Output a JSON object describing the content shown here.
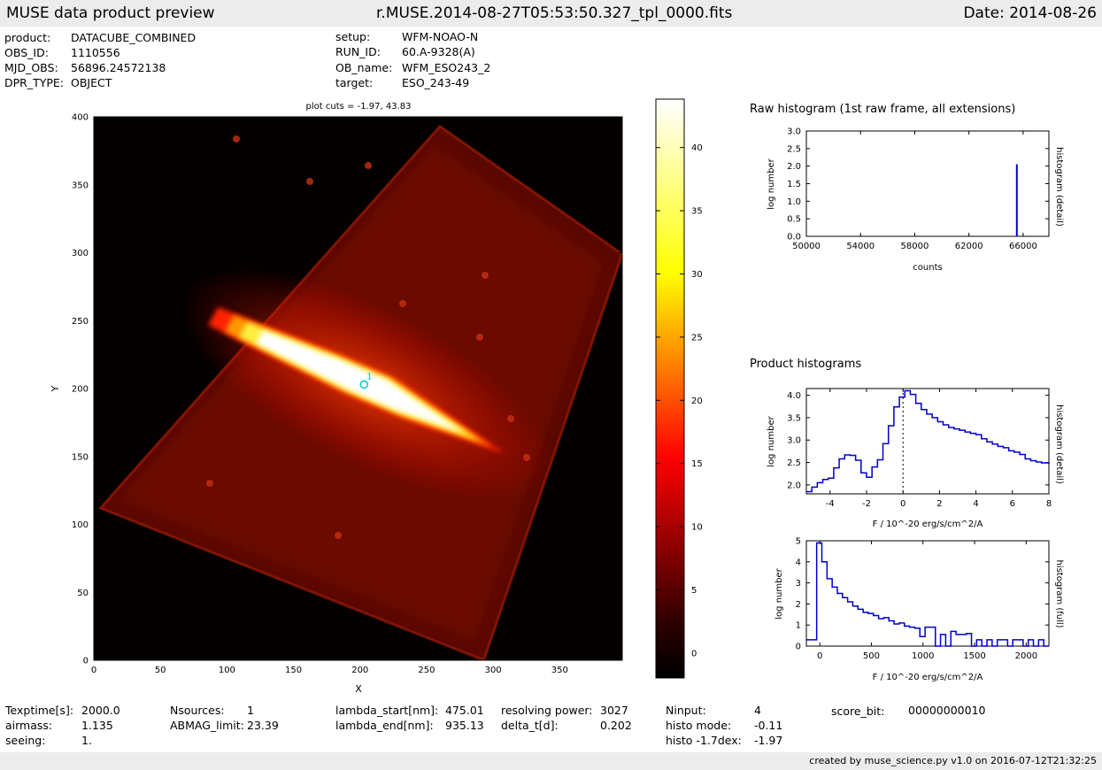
{
  "header": {
    "title": "MUSE data product preview",
    "filename": "r.MUSE.2014-08-27T05:53:50.327_tpl_0000.fits",
    "date": "Date: 2014-08-26"
  },
  "info": {
    "left": [
      {
        "label": "product:",
        "value": "DATACUBE_COMBINED"
      },
      {
        "label": "OBS_ID:",
        "value": "1110556"
      },
      {
        "label": "MJD_OBS:",
        "value": "56896.24572138"
      },
      {
        "label": "DPR_TYPE:",
        "value": "OBJECT"
      }
    ],
    "right": [
      {
        "label": "setup:",
        "value": "WFM-NOAO-N"
      },
      {
        "label": "RUN_ID:",
        "value": "60.A-9328(A)"
      },
      {
        "label": "OB_name:",
        "value": "WFM_ESO243_2"
      },
      {
        "label": "target:",
        "value": "ESO_243-49"
      }
    ]
  },
  "footer": {
    "c1": [
      {
        "label": "Texptime[s]:",
        "value": "2000.0"
      },
      {
        "label": "airmass:",
        "value": "1.135"
      },
      {
        "label": "seeing:",
        "value": "1."
      }
    ],
    "c2": [
      {
        "label": "Nsources:",
        "value": "1"
      },
      {
        "label": "ABMAG_limit:",
        "value": "23.39"
      }
    ],
    "c3": [
      {
        "label": "lambda_start[nm]:",
        "value": "475.01"
      },
      {
        "label": "lambda_end[nm]:",
        "value": "935.13"
      }
    ],
    "c4": [
      {
        "label": "resolving power:",
        "value": "3027"
      },
      {
        "label": "delta_t[d]:",
        "value": "0.202"
      }
    ],
    "c5": [
      {
        "label": "Ninput:",
        "value": "4"
      },
      {
        "label": "histo mode:",
        "value": "-0.11"
      },
      {
        "label": "histo -1.7dex:",
        "value": "-1.97"
      }
    ],
    "c6": [
      {
        "label": "score_bit:",
        "value": "00000000010"
      }
    ],
    "credit": "created by muse_science.py v1.0 on 2016-07-12T21:32:25"
  },
  "colors": {
    "hist": "#0000cc",
    "source": "#00c8c8",
    "bar": "#ececec"
  },
  "chart_data": [
    {
      "type": "heatmap",
      "title": "plot cuts = -1.97, 43.83",
      "xlabel": "X",
      "ylabel": "Y",
      "xlim": [
        0,
        397
      ],
      "ylim": [
        0,
        400
      ],
      "xticks": [
        0,
        50,
        100,
        150,
        200,
        250,
        300,
        350
      ],
      "yticks": [
        0,
        50,
        100,
        150,
        200,
        250,
        300,
        350,
        400
      ],
      "colormap": "hot",
      "field_corners": [
        [
          5,
          112
        ],
        [
          260,
          393
        ],
        [
          397,
          299
        ],
        [
          293,
          0
        ]
      ],
      "galaxy_peak": [
        250,
        207
      ],
      "source": {
        "x": 203,
        "y": 203,
        "label": "1"
      },
      "colorbar": {
        "min": -1.97,
        "max": 43.83,
        "ticks": [
          0,
          5,
          10,
          15,
          20,
          25,
          30,
          35,
          40
        ]
      }
    },
    {
      "type": "bar",
      "title": "Raw histogram (1st raw frame, all extensions)",
      "xlabel": "counts",
      "ylabel": "log number",
      "y2label": "histogram (detail)",
      "xlim": [
        50000,
        67900
      ],
      "ylim": [
        0,
        3.0
      ],
      "xticks": [
        50000,
        54000,
        58000,
        62000,
        66000
      ],
      "yticks": [
        0.0,
        0.5,
        1.0,
        1.5,
        2.0,
        2.5,
        3.0
      ],
      "spike": {
        "x": 65535,
        "y": 2.05
      }
    },
    {
      "type": "line",
      "title": "Product histograms",
      "xlabel": "F / 10^-20 erg/s/cm^2/A",
      "ylabel": "log number",
      "y2label": "histogram (detail)",
      "xlim": [
        -5.3,
        8
      ],
      "ylim": [
        1.8,
        4.15
      ],
      "xticks": [
        -4,
        -2,
        0,
        2,
        4,
        6,
        8
      ],
      "yticks": [
        2.0,
        2.5,
        3.0,
        3.5,
        4.0
      ],
      "vline": 0,
      "x": [
        -5.3,
        -5.0,
        -4.7,
        -4.4,
        -4.1,
        -3.8,
        -3.5,
        -3.2,
        -2.9,
        -2.6,
        -2.3,
        -2.0,
        -1.7,
        -1.4,
        -1.1,
        -0.8,
        -0.5,
        -0.2,
        0.1,
        0.4,
        0.7,
        1.0,
        1.3,
        1.6,
        1.9,
        2.2,
        2.5,
        2.8,
        3.1,
        3.4,
        3.7,
        4.0,
        4.3,
        4.6,
        4.9,
        5.2,
        5.5,
        5.8,
        6.1,
        6.4,
        6.7,
        7.0,
        7.3,
        7.6,
        8.0
      ],
      "y": [
        1.85,
        1.95,
        2.05,
        2.12,
        2.15,
        2.38,
        2.58,
        2.67,
        2.66,
        2.55,
        2.27,
        2.17,
        2.4,
        2.56,
        2.92,
        3.32,
        3.74,
        3.96,
        4.1,
        4.02,
        3.82,
        3.68,
        3.58,
        3.5,
        3.41,
        3.34,
        3.28,
        3.25,
        3.22,
        3.18,
        3.15,
        3.12,
        3.03,
        2.96,
        2.91,
        2.86,
        2.83,
        2.76,
        2.73,
        2.68,
        2.58,
        2.54,
        2.51,
        2.49,
        2.47
      ]
    },
    {
      "type": "line",
      "xlabel": "F / 10^-20 erg/s/cm^2/A",
      "ylabel": "log number",
      "y2label": "histogram (full)",
      "xlim": [
        -130,
        2220
      ],
      "ylim": [
        0,
        5
      ],
      "xticks": [
        0,
        500,
        1000,
        1500,
        2000
      ],
      "yticks": [
        0,
        1,
        2,
        3,
        4,
        5
      ],
      "x": [
        -130,
        -30,
        20,
        70,
        120,
        170,
        220,
        270,
        320,
        370,
        420,
        470,
        520,
        570,
        620,
        670,
        720,
        770,
        820,
        870,
        920,
        970,
        1020,
        1070,
        1120,
        1170,
        1220,
        1270,
        1320,
        1370,
        1420,
        1470,
        1520,
        1570,
        1620,
        1670,
        1720,
        1770,
        1820,
        1870,
        1920,
        1970,
        2020,
        2070,
        2120,
        2170,
        2220
      ],
      "y": [
        0.3,
        4.9,
        4.0,
        3.2,
        2.8,
        2.5,
        2.3,
        2.1,
        1.9,
        1.75,
        1.6,
        1.55,
        1.45,
        1.3,
        1.35,
        1.2,
        1.05,
        1.1,
        0.95,
        0.9,
        0.85,
        0.45,
        0.9,
        0.9,
        0.0,
        0.55,
        0.0,
        0.7,
        0.55,
        0.55,
        0.6,
        0.0,
        0.3,
        0.0,
        0.3,
        0.0,
        0.3,
        0.3,
        0.0,
        0.3,
        0.3,
        0.0,
        0.3,
        0.0,
        0.3,
        0.0,
        0.0
      ]
    }
  ]
}
